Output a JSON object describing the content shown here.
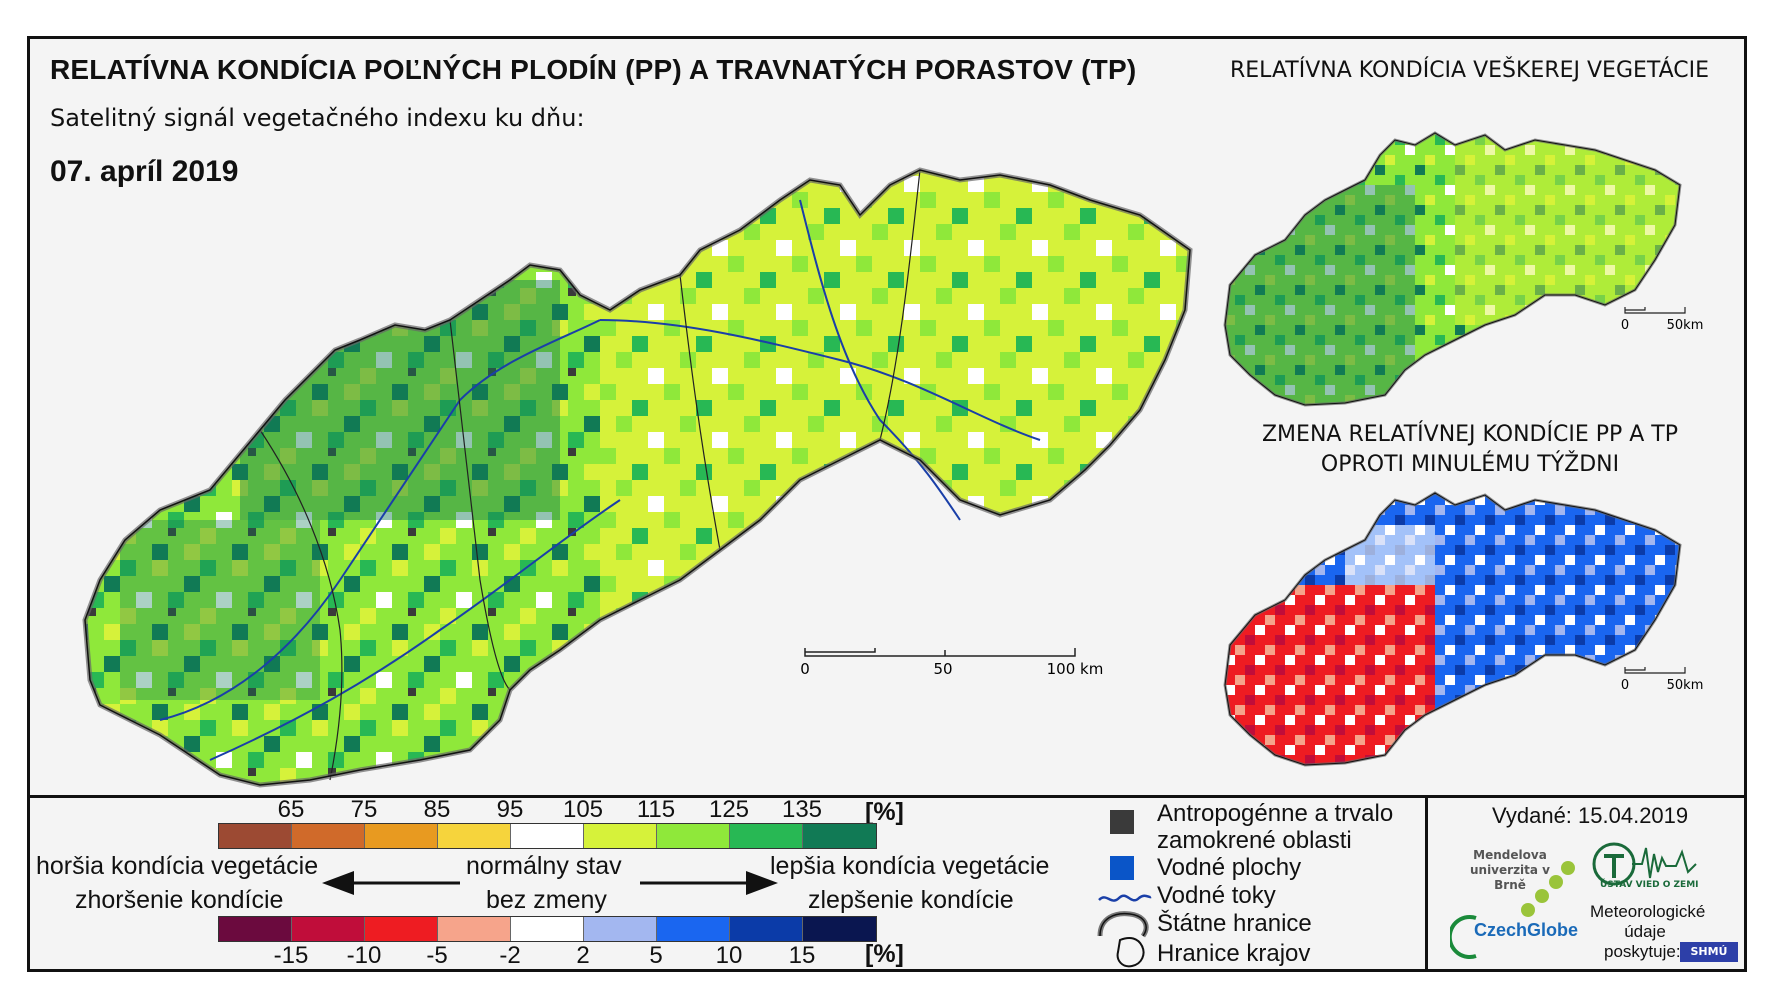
{
  "header": {
    "title": "RELATÍVNA KONDÍCIA POĽNÝCH PLODÍN (PP) A TRAVNATÝCH PORASTOV (TP)",
    "subtitle": "Satelitný signál vegetačného indexu ku dňu:",
    "date": "07. apríl 2019",
    "right_title": "RELATÍVNA KONDÍCIA VEŠKEREJ VEGETÁCIE",
    "change_title_line1": "ZMENA RELATÍVNEJ KONDÍCIE PP A TP",
    "change_title_line2": "OPROTI MINULÉMU TÝŽDNI"
  },
  "main_scale": {
    "labels": [
      "0",
      "50",
      "100 km"
    ]
  },
  "small_scale_top": {
    "labels": [
      "0",
      "50km"
    ]
  },
  "small_scale_bottom": {
    "labels": [
      "0",
      "50km"
    ]
  },
  "condition_ramp": {
    "ticks": [
      "65",
      "75",
      "85",
      "95",
      "105",
      "115",
      "125",
      "135"
    ],
    "unit": "[%]",
    "colors": [
      "#9c4a33",
      "#d06a2a",
      "#e89a20",
      "#f6d43c",
      "#ffffff",
      "#d6f23a",
      "#8fe83a",
      "#28b854",
      "#117a55"
    ]
  },
  "change_ramp": {
    "ticks": [
      "-15",
      "-10",
      "-5",
      "-2",
      "2",
      "5",
      "10",
      "15"
    ],
    "unit": "[%]",
    "colors": [
      "#6b0a3e",
      "#c00d3a",
      "#ee1c22",
      "#f6a48b",
      "#ffffff",
      "#a3b7f0",
      "#1a66f0",
      "#0b3ba8",
      "#0a1650"
    ]
  },
  "arrows": {
    "worse_line1": "horšia kondícia vegetácie",
    "worse_line2": "zhoršenie kondície",
    "normal_line1": "normálny stav",
    "normal_line2": "bez zmeny",
    "better_line1": "lepšia kondícia vegetácie",
    "better_line2": "zlepšenie kondície"
  },
  "legend": {
    "anthropogenic_line1": "Antropogénne a trvalo",
    "anthropogenic_line2": "zamokrené oblasti",
    "water_bodies": "Vodné plochy",
    "rivers": "Vodné toky",
    "state_border": "Štátne hranice",
    "regions": "Hranice krajov",
    "colors": {
      "anthropogenic": "#3a3a3a",
      "water": "#0a55c8",
      "river": "#1a3fa8"
    }
  },
  "footer": {
    "issued": "Vydané: 15.04.2019",
    "mendel": "Mendelova univerzita v Brně",
    "czechglobe": "CzechGlobe",
    "uvoz": "ÚSTAV VIED O ZEMI",
    "meteo_line1": "Meteorologické",
    "meteo_line2": "údaje",
    "meteo_line3": "poskytuje:",
    "shmu": "SHMÚ"
  }
}
